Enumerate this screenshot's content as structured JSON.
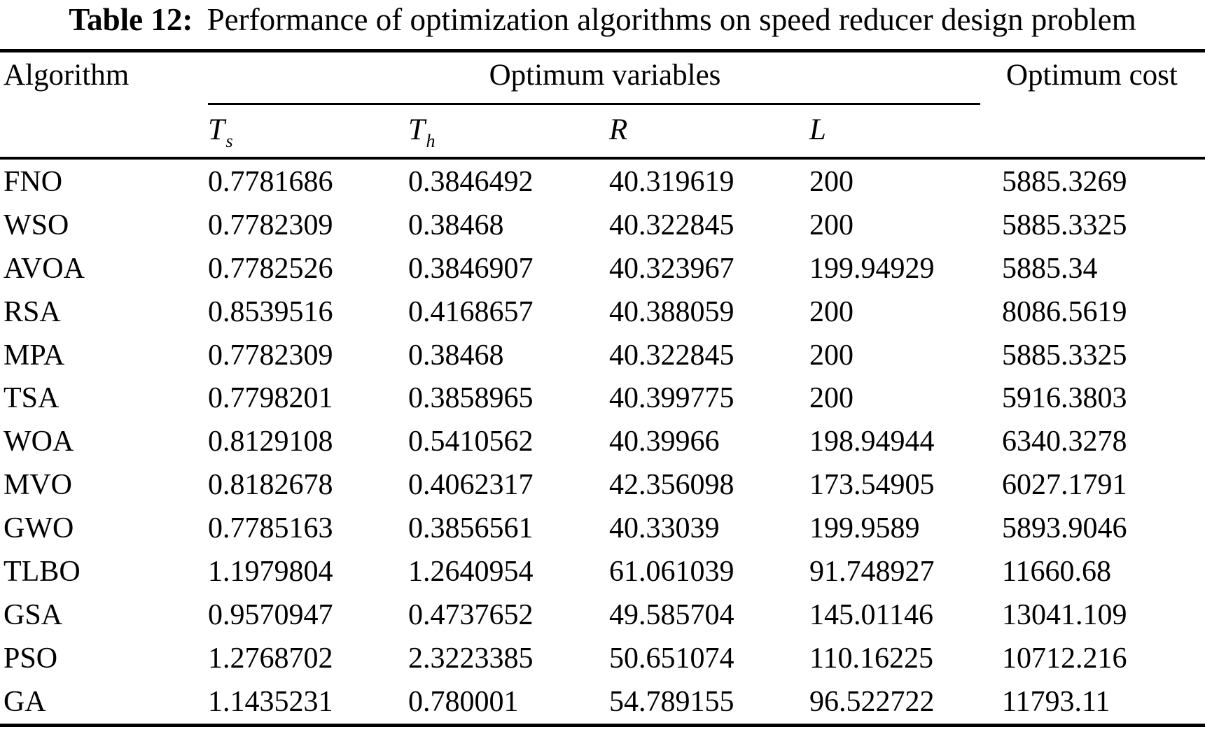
{
  "title": {
    "label": "Table 12:",
    "text": "Performance of optimization algorithms on speed reducer design problem"
  },
  "table": {
    "col_algorithm": "Algorithm",
    "group_header": "Optimum variables",
    "col_cost": "Optimum cost",
    "sub_columns": [
      {
        "base": "T",
        "sub": "s"
      },
      {
        "base": "T",
        "sub": "h"
      },
      {
        "base": "R",
        "sub": ""
      },
      {
        "base": "L",
        "sub": ""
      }
    ],
    "rows": [
      {
        "algorithm": "FNO",
        "cells": [
          "0.7781686",
          "0.3846492",
          "40.319619",
          "200",
          "5885.3269"
        ]
      },
      {
        "algorithm": "WSO",
        "cells": [
          "0.7782309",
          "0.38468",
          "40.322845",
          "200",
          "5885.3325"
        ]
      },
      {
        "algorithm": "AVOA",
        "cells": [
          "0.7782526",
          "0.3846907",
          "40.323967",
          "199.94929",
          "5885.34"
        ]
      },
      {
        "algorithm": "RSA",
        "cells": [
          "0.8539516",
          "0.4168657",
          "40.388059",
          "200",
          "8086.5619"
        ]
      },
      {
        "algorithm": "MPA",
        "cells": [
          "0.7782309",
          "0.38468",
          "40.322845",
          "200",
          "5885.3325"
        ]
      },
      {
        "algorithm": "TSA",
        "cells": [
          "0.7798201",
          "0.3858965",
          "40.399775",
          "200",
          "5916.3803"
        ]
      },
      {
        "algorithm": "WOA",
        "cells": [
          "0.8129108",
          "0.5410562",
          "40.39966",
          "198.94944",
          "6340.3278"
        ]
      },
      {
        "algorithm": "MVO",
        "cells": [
          "0.8182678",
          "0.4062317",
          "42.356098",
          "173.54905",
          "6027.1791"
        ]
      },
      {
        "algorithm": "GWO",
        "cells": [
          "0.7785163",
          "0.3856561",
          "40.33039",
          "199.9589",
          "5893.9046"
        ]
      },
      {
        "algorithm": "TLBO",
        "cells": [
          "1.1979804",
          "1.2640954",
          "61.061039",
          "91.748927",
          "11660.68"
        ]
      },
      {
        "algorithm": "GSA",
        "cells": [
          "0.9570947",
          "0.4737652",
          "49.585704",
          "145.01146",
          "13041.109"
        ]
      },
      {
        "algorithm": "PSO",
        "cells": [
          "1.2768702",
          "2.3223385",
          "50.651074",
          "110.16225",
          "10712.216"
        ]
      },
      {
        "algorithm": "GA",
        "cells": [
          "1.1435231",
          "0.780001",
          "54.789155",
          "96.522722",
          "11793.11"
        ]
      }
    ]
  },
  "chart_data": {
    "type": "table",
    "title": "Table 12: Performance of optimization algorithms on speed reducer design problem",
    "columns": [
      "Algorithm",
      "Ts",
      "Th",
      "R",
      "L",
      "Optimum cost"
    ],
    "rows": [
      [
        "FNO",
        0.7781686,
        0.3846492,
        40.319619,
        200,
        5885.3269
      ],
      [
        "WSO",
        0.7782309,
        0.38468,
        40.322845,
        200,
        5885.3325
      ],
      [
        "AVOA",
        0.7782526,
        0.3846907,
        40.323967,
        199.94929,
        5885.34
      ],
      [
        "RSA",
        0.8539516,
        0.4168657,
        40.388059,
        200,
        8086.5619
      ],
      [
        "MPA",
        0.7782309,
        0.38468,
        40.322845,
        200,
        5885.3325
      ],
      [
        "TSA",
        0.7798201,
        0.3858965,
        40.399775,
        200,
        5916.3803
      ],
      [
        "WOA",
        0.8129108,
        0.5410562,
        40.39966,
        198.94944,
        6340.3278
      ],
      [
        "MVO",
        0.8182678,
        0.4062317,
        42.356098,
        173.54905,
        6027.1791
      ],
      [
        "GWO",
        0.7785163,
        0.3856561,
        40.33039,
        199.9589,
        5893.9046
      ],
      [
        "TLBO",
        1.1979804,
        1.2640954,
        61.061039,
        91.748927,
        11660.68
      ],
      [
        "GSA",
        0.9570947,
        0.4737652,
        49.585704,
        145.01146,
        13041.109
      ],
      [
        "PSO",
        1.2768702,
        2.3223385,
        50.651074,
        110.16225,
        10712.216
      ],
      [
        "GA",
        1.1435231,
        0.780001,
        54.789155,
        96.522722,
        11793.11
      ]
    ]
  }
}
